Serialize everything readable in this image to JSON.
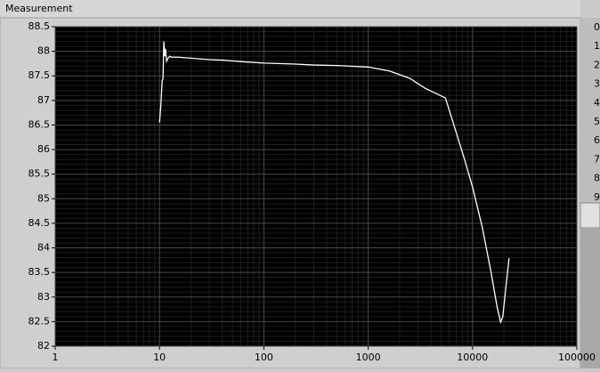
{
  "window_title": "Measurement",
  "chart_data": {
    "type": "line",
    "log_x": true,
    "grid": true,
    "color": "#ffffff",
    "x": [
      10,
      10.3,
      10.6,
      10.8,
      11,
      11.2,
      11.4,
      11.7,
      12,
      12.5,
      13,
      15,
      20,
      30,
      40,
      60,
      100,
      200,
      300,
      500,
      1000,
      1600,
      2500,
      3500,
      5500,
      8200,
      10000,
      12400,
      15000,
      17200,
      18600,
      19500,
      21000,
      22400
    ],
    "values": [
      86.55,
      86.9,
      87.4,
      87.45,
      88.2,
      87.9,
      88.05,
      87.8,
      87.85,
      87.9,
      87.88,
      87.88,
      87.86,
      87.83,
      87.82,
      87.79,
      87.76,
      87.74,
      87.72,
      87.71,
      87.68,
      87.6,
      87.45,
      87.25,
      87.05,
      85.87,
      85.24,
      84.42,
      83.52,
      82.8,
      82.49,
      82.6,
      83.25,
      83.79
    ],
    "xlim": [
      1,
      100000
    ],
    "xticks": [
      1,
      10,
      100,
      1000,
      10000,
      100000
    ],
    "ylim": [
      82,
      88.5
    ],
    "yticks": [
      82,
      82.5,
      83,
      83.5,
      84,
      84.5,
      85,
      85.5,
      86,
      86.5,
      87,
      87.5,
      88,
      88.5
    ]
  },
  "index_list": [
    "0",
    "1",
    "2",
    "3",
    "4",
    "5",
    "6",
    "7",
    "8",
    "9"
  ]
}
